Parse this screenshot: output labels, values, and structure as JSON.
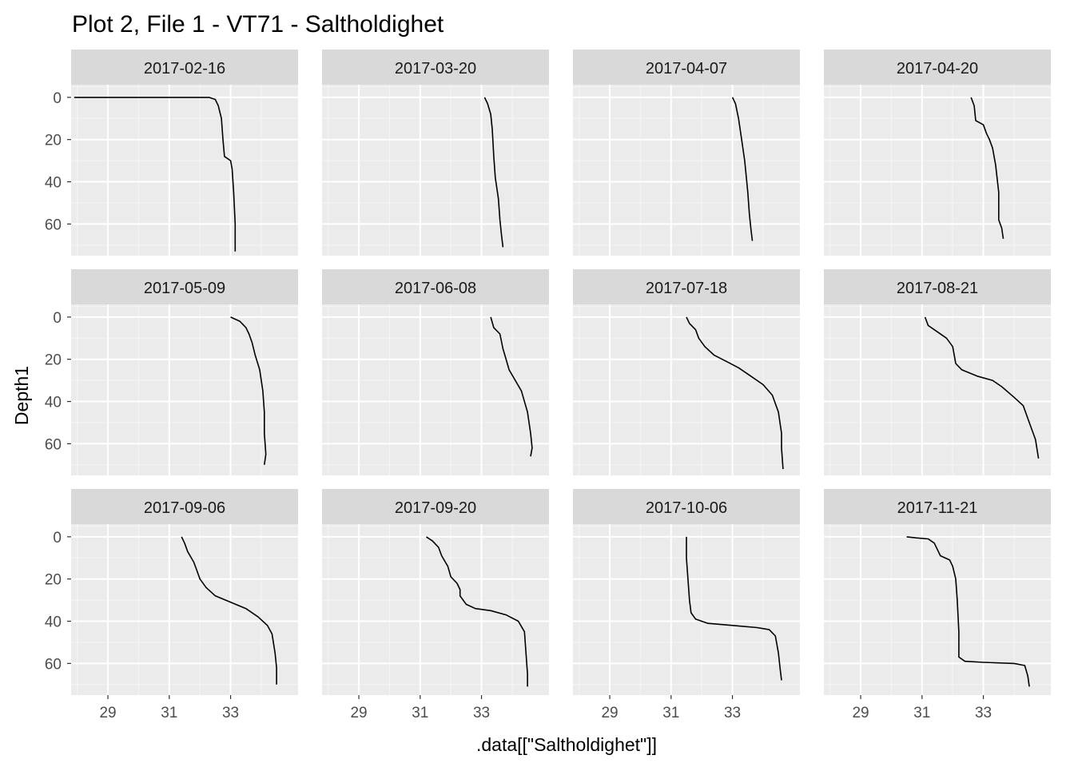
{
  "chart_data": {
    "type": "line",
    "title": "Plot 2, File 1 - VT71  -  Saltholdighet",
    "xlabel": ".data[[\"Saltholdighet\"]]",
    "ylabel": "Depth1",
    "xlim": [
      27.8,
      35.2
    ],
    "ylim": [
      75,
      -6
    ],
    "x_ticks": [
      "29",
      "31",
      "33"
    ],
    "y_ticks": [
      "0",
      "20",
      "40",
      "60"
    ],
    "x_tick_values": [
      29,
      31,
      33
    ],
    "y_tick_values": [
      0,
      20,
      40,
      60
    ],
    "grid": true,
    "facets": [
      {
        "label": "2017-02-16",
        "points": [
          [
            27.9,
            0
          ],
          [
            32.3,
            0
          ],
          [
            32.5,
            1
          ],
          [
            32.6,
            4
          ],
          [
            32.7,
            10
          ],
          [
            32.75,
            20
          ],
          [
            32.8,
            28
          ],
          [
            33.0,
            30
          ],
          [
            33.05,
            34
          ],
          [
            33.1,
            45
          ],
          [
            33.15,
            60
          ],
          [
            33.15,
            73
          ]
        ]
      },
      {
        "label": "2017-03-20",
        "points": [
          [
            33.1,
            0
          ],
          [
            33.2,
            3
          ],
          [
            33.3,
            8
          ],
          [
            33.35,
            15
          ],
          [
            33.4,
            28
          ],
          [
            33.45,
            38
          ],
          [
            33.55,
            48
          ],
          [
            33.6,
            58
          ],
          [
            33.65,
            65
          ],
          [
            33.7,
            71
          ]
        ]
      },
      {
        "label": "2017-04-07",
        "points": [
          [
            33.0,
            0
          ],
          [
            33.1,
            3
          ],
          [
            33.2,
            10
          ],
          [
            33.3,
            20
          ],
          [
            33.4,
            30
          ],
          [
            33.5,
            45
          ],
          [
            33.55,
            55
          ],
          [
            33.6,
            62
          ],
          [
            33.65,
            68
          ]
        ]
      },
      {
        "label": "2017-04-20",
        "points": [
          [
            32.6,
            0
          ],
          [
            32.7,
            4
          ],
          [
            32.75,
            11
          ],
          [
            33.0,
            13
          ],
          [
            33.1,
            17
          ],
          [
            33.2,
            20
          ],
          [
            33.3,
            24
          ],
          [
            33.4,
            32
          ],
          [
            33.5,
            45
          ],
          [
            33.5,
            58
          ],
          [
            33.6,
            62
          ],
          [
            33.65,
            67
          ]
        ]
      },
      {
        "label": "2017-05-09",
        "points": [
          [
            33.0,
            0
          ],
          [
            33.3,
            2
          ],
          [
            33.5,
            5
          ],
          [
            33.6,
            8
          ],
          [
            33.7,
            12
          ],
          [
            33.8,
            18
          ],
          [
            33.95,
            25
          ],
          [
            34.05,
            35
          ],
          [
            34.1,
            45
          ],
          [
            34.1,
            55
          ],
          [
            34.15,
            65
          ],
          [
            34.1,
            70
          ]
        ]
      },
      {
        "label": "2017-06-08",
        "points": [
          [
            33.3,
            0
          ],
          [
            33.4,
            5
          ],
          [
            33.6,
            8
          ],
          [
            33.7,
            15
          ],
          [
            33.8,
            20
          ],
          [
            33.9,
            25
          ],
          [
            34.1,
            30
          ],
          [
            34.3,
            35
          ],
          [
            34.5,
            45
          ],
          [
            34.6,
            55
          ],
          [
            34.65,
            62
          ],
          [
            34.6,
            66
          ]
        ]
      },
      {
        "label": "2017-07-18",
        "points": [
          [
            31.5,
            0
          ],
          [
            31.6,
            3
          ],
          [
            31.8,
            6
          ],
          [
            31.9,
            10
          ],
          [
            32.1,
            14
          ],
          [
            32.4,
            18
          ],
          [
            32.8,
            21
          ],
          [
            33.2,
            24
          ],
          [
            33.6,
            28
          ],
          [
            34.0,
            32
          ],
          [
            34.3,
            37
          ],
          [
            34.5,
            45
          ],
          [
            34.6,
            55
          ],
          [
            34.6,
            62
          ],
          [
            34.65,
            72
          ]
        ]
      },
      {
        "label": "2017-08-21",
        "points": [
          [
            31.1,
            0
          ],
          [
            31.2,
            4
          ],
          [
            31.5,
            7
          ],
          [
            31.8,
            10
          ],
          [
            32.0,
            14
          ],
          [
            32.05,
            18
          ],
          [
            32.1,
            22
          ],
          [
            32.3,
            25
          ],
          [
            32.8,
            28
          ],
          [
            33.3,
            30
          ],
          [
            33.6,
            33
          ],
          [
            34.0,
            38
          ],
          [
            34.3,
            42
          ],
          [
            34.5,
            50
          ],
          [
            34.7,
            58
          ],
          [
            34.8,
            67
          ]
        ]
      },
      {
        "label": "2017-09-06",
        "points": [
          [
            31.4,
            0
          ],
          [
            31.5,
            3
          ],
          [
            31.6,
            7
          ],
          [
            31.8,
            12
          ],
          [
            31.9,
            16
          ],
          [
            32.0,
            20
          ],
          [
            32.2,
            24
          ],
          [
            32.5,
            28
          ],
          [
            33.0,
            31
          ],
          [
            33.5,
            34
          ],
          [
            33.9,
            38
          ],
          [
            34.2,
            42
          ],
          [
            34.35,
            46
          ],
          [
            34.45,
            55
          ],
          [
            34.5,
            62
          ],
          [
            34.5,
            70
          ]
        ]
      },
      {
        "label": "2017-09-20",
        "points": [
          [
            31.2,
            0
          ],
          [
            31.4,
            2
          ],
          [
            31.6,
            5
          ],
          [
            31.7,
            9
          ],
          [
            31.9,
            14
          ],
          [
            32.0,
            19
          ],
          [
            32.2,
            22
          ],
          [
            32.3,
            25
          ],
          [
            32.3,
            28
          ],
          [
            32.5,
            32
          ],
          [
            32.8,
            34
          ],
          [
            33.3,
            35
          ],
          [
            33.8,
            37
          ],
          [
            34.2,
            40
          ],
          [
            34.4,
            45
          ],
          [
            34.45,
            55
          ],
          [
            34.5,
            65
          ],
          [
            34.5,
            71
          ]
        ]
      },
      {
        "label": "2017-10-06",
        "points": [
          [
            31.5,
            0
          ],
          [
            31.5,
            10
          ],
          [
            31.55,
            20
          ],
          [
            31.6,
            30
          ],
          [
            31.65,
            36
          ],
          [
            31.8,
            39
          ],
          [
            32.2,
            41
          ],
          [
            33.0,
            42
          ],
          [
            33.8,
            43
          ],
          [
            34.2,
            44
          ],
          [
            34.4,
            47
          ],
          [
            34.5,
            55
          ],
          [
            34.55,
            62
          ],
          [
            34.6,
            68
          ]
        ]
      },
      {
        "label": "2017-11-21",
        "points": [
          [
            30.5,
            0
          ],
          [
            30.8,
            0.5
          ],
          [
            31.2,
            1
          ],
          [
            31.4,
            3
          ],
          [
            31.5,
            6
          ],
          [
            31.6,
            9
          ],
          [
            31.9,
            11
          ],
          [
            32.0,
            14
          ],
          [
            32.1,
            20
          ],
          [
            32.15,
            30
          ],
          [
            32.2,
            45
          ],
          [
            32.2,
            57
          ],
          [
            32.4,
            59
          ],
          [
            33.0,
            59.5
          ],
          [
            34.0,
            60
          ],
          [
            34.35,
            61
          ],
          [
            34.45,
            66
          ],
          [
            34.5,
            71
          ]
        ]
      }
    ]
  }
}
